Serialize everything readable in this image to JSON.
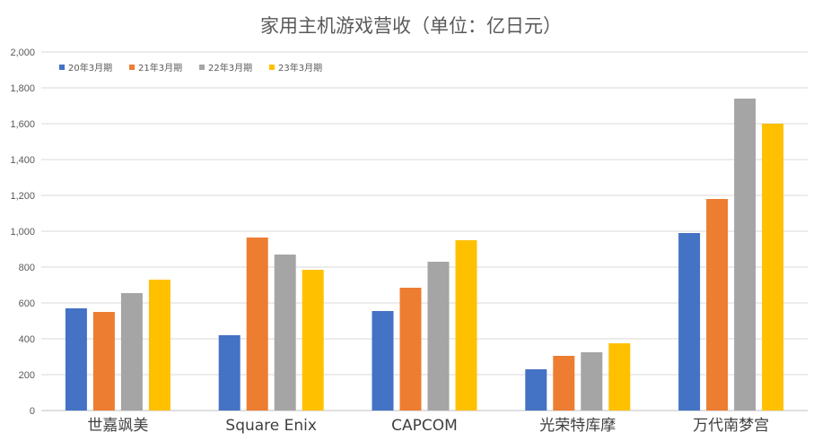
{
  "chart_data": {
    "type": "bar",
    "title": "家用主机游戏营收（单位：亿日元）",
    "xlabel": "",
    "ylabel": "",
    "ylim": [
      0,
      2000
    ],
    "yticks": [
      0,
      200,
      400,
      600,
      800,
      1000,
      1200,
      1400,
      1600,
      1800,
      2000
    ],
    "ytick_labels": [
      "0",
      "200",
      "400",
      "600",
      "800",
      "1,000",
      "1,200",
      "1,400",
      "1,600",
      "1,800",
      "2,000"
    ],
    "grid": true,
    "legend_position": "top-left",
    "categories": [
      "世嘉飒美",
      "Square Enix",
      "CAPCOM",
      "光荣特库摩",
      "万代南梦宫"
    ],
    "series": [
      {
        "name": "20年3月期",
        "color": "#4472C4",
        "values": [
          570,
          420,
          555,
          230,
          990
        ]
      },
      {
        "name": "21年3月期",
        "color": "#ED7D31",
        "values": [
          550,
          965,
          685,
          305,
          1180
        ]
      },
      {
        "name": "22年3月期",
        "color": "#A5A5A5",
        "values": [
          655,
          870,
          830,
          325,
          1740
        ]
      },
      {
        "name": "23年3月期",
        "color": "#FFC000",
        "values": [
          730,
          785,
          950,
          375,
          1600
        ]
      }
    ]
  }
}
